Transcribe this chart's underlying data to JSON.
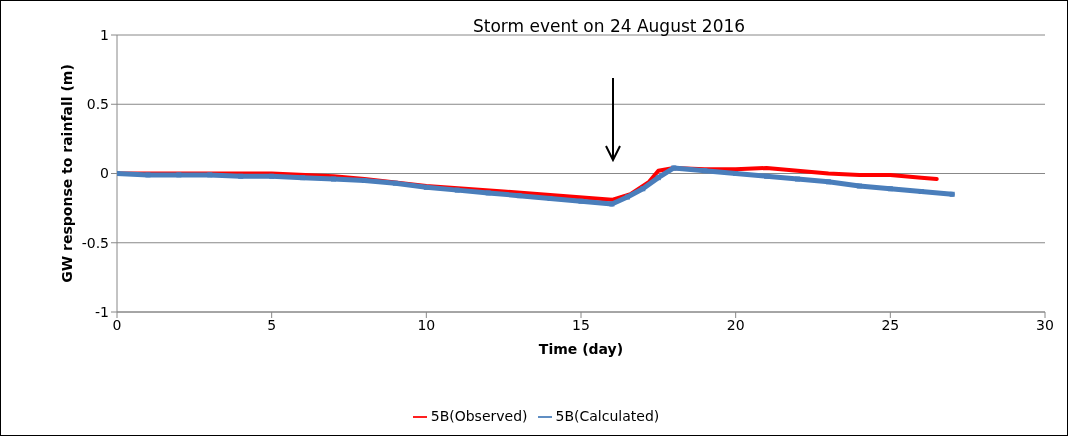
{
  "chart_data": {
    "type": "line",
    "xlabel": "Time (day)",
    "ylabel": "GW response  to rainfall (m)",
    "xlim": [
      0,
      30
    ],
    "xticks": [
      0,
      5,
      10,
      15,
      20,
      25,
      30
    ],
    "ylim": [
      -1,
      1
    ],
    "yticks": [
      -1,
      -0.5,
      0,
      0.5,
      1
    ],
    "grid": "y",
    "legend": "bottom",
    "annotations": [
      "Storm  event  on  24  August 2016"
    ],
    "series": [
      {
        "name": "5B(Observed)",
        "color": "#ff0000",
        "marker": "none",
        "x": [
          0,
          3,
          5,
          7,
          8,
          10,
          12.5,
          16,
          16.6,
          17.2,
          17.5,
          18,
          19,
          20,
          21,
          22,
          23,
          24,
          25,
          26,
          26.5
        ],
        "values": [
          0,
          0,
          0,
          -0.02,
          -0.04,
          -0.09,
          -0.13,
          -0.19,
          -0.15,
          -0.06,
          0.02,
          0.04,
          0.03,
          0.03,
          0.04,
          0.02,
          0,
          -0.01,
          -0.01,
          -0.03,
          -0.04
        ]
      },
      {
        "name": "5B(Calculated)",
        "color": "#4a7ebb",
        "marker": "square",
        "x": [
          0,
          1,
          2,
          3,
          4,
          5,
          6,
          7,
          8,
          9,
          10,
          11,
          12,
          13,
          14,
          15,
          16,
          16.5,
          17,
          17.5,
          18,
          19,
          20,
          21,
          22,
          23,
          24,
          25,
          26,
          27
        ],
        "values": [
          0,
          -0.01,
          -0.01,
          -0.01,
          -0.02,
          -0.02,
          -0.03,
          -0.04,
          -0.05,
          -0.07,
          -0.1,
          -0.12,
          -0.14,
          -0.16,
          -0.18,
          -0.2,
          -0.22,
          -0.17,
          -0.11,
          -0.03,
          0.04,
          0.02,
          0,
          -0.02,
          -0.04,
          -0.06,
          -0.09,
          -0.11,
          -0.13,
          -0.15
        ]
      }
    ]
  }
}
